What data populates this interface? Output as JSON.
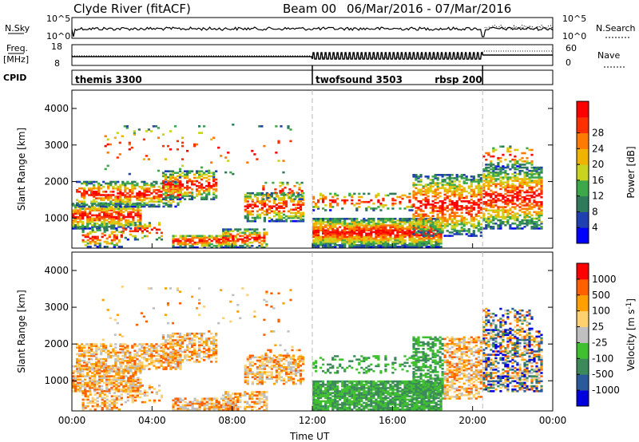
{
  "header": {
    "station": "Clyde River (fitACF)",
    "beam": "Beam 00",
    "dates": "06/Mar/2016 - 07/Mar/2016"
  },
  "top_panels": {
    "nsky_label": "N.Sky",
    "nsearch_label": "N.Search",
    "nsky_ticks": [
      "10^5",
      "10^0"
    ],
    "nsearch_ticks": [
      "10^5",
      "10^0"
    ],
    "freq_label": "Freq.",
    "freq_unit": "[MHz]",
    "freq_ticks": [
      "18",
      "8"
    ],
    "nave_label": "Nave",
    "nave_ticks": [
      "60",
      "0"
    ],
    "cpid_label": "CPID",
    "cpid_segments": [
      {
        "name": "themis 3300",
        "start": 0,
        "end": 12
      },
      {
        "name": "twofsound 3503",
        "start": 12,
        "end": 20.5
      },
      {
        "name": "rbsp 200",
        "start": 20.5,
        "end": 24
      }
    ]
  },
  "chart_data": [
    {
      "type": "heatmap",
      "name": "Power",
      "ylabel": "Slant Range [km]",
      "ylim": [
        180,
        4500
      ],
      "yticks": [
        "1000",
        "2000",
        "3000",
        "4000"
      ],
      "colorbar_label": "Power [dB]",
      "colorbar_ticks": [
        "4",
        "8",
        "12",
        "16",
        "20",
        "24",
        "28"
      ],
      "colorbar_colors": [
        "#0000ff",
        "#2040b0",
        "#2f7a5a",
        "#3da84a",
        "#c8d420",
        "#f0b400",
        "#ff7a00",
        "#ff3000",
        "#ff0000"
      ],
      "xlim": [
        0,
        24
      ],
      "xticks": [
        "00:00",
        "04:00",
        "08:00",
        "12:00",
        "16:00",
        "20:00",
        "00:00"
      ]
    },
    {
      "type": "heatmap",
      "name": "Velocity",
      "ylabel": "Slant Range [km]",
      "ylim": [
        180,
        4500
      ],
      "yticks": [
        "1000",
        "2000",
        "3000",
        "4000"
      ],
      "colorbar_label": "Velocity [m s",
      "colorbar_label_sup": "-1",
      "colorbar_ticks": [
        "1000",
        "500",
        "100",
        "25",
        "-25",
        "-100",
        "-500",
        "-1000"
      ],
      "colorbar_colors": [
        "#0000dd",
        "#2a5a9a",
        "#3c8a5a",
        "#40c030",
        "#c0c0c0",
        "#ffd070",
        "#ffa000",
        "#ff6000",
        "#ff0000"
      ],
      "xlim": [
        0,
        24
      ],
      "xticks": [
        "00:00",
        "04:00",
        "08:00",
        "12:00",
        "16:00",
        "20:00",
        "00:00"
      ],
      "xlabel": "Time UT"
    }
  ]
}
